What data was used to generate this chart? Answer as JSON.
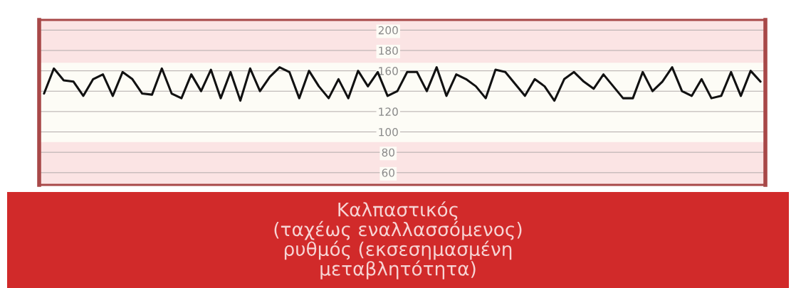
{
  "chart_data": {
    "type": "line",
    "title": "Καλπαστικός\n(ταχέως εναλλασσόμενος)\nρυθμός (εκσεσημασμένη\nμεταβλητότητα)",
    "categories": [
      null,
      null,
      null,
      null,
      null,
      null,
      null,
      null,
      null,
      null,
      null,
      null,
      null,
      null,
      null,
      null,
      null,
      null,
      null,
      null,
      null,
      null,
      null,
      null,
      null,
      null,
      null,
      null,
      null,
      null,
      null,
      null,
      null,
      null,
      null,
      null,
      null,
      null,
      null,
      null,
      null,
      null,
      null,
      null,
      null,
      null,
      null,
      null,
      null,
      null,
      null,
      null,
      null,
      null,
      null,
      null,
      null,
      null,
      null,
      null,
      null,
      null,
      null,
      null,
      null,
      null,
      null,
      null,
      null,
      null,
      null,
      null,
      null,
      null
    ],
    "series": [
      {
        "color": "#111111",
        "values": [
          137.7,
          162.3,
          150.6,
          149.4,
          135.4,
          151.8,
          156.5,
          135.4,
          158.8,
          151.8,
          137.7,
          136.6,
          162.3,
          137.7,
          133.1,
          156.5,
          140.1,
          161.1,
          133.1,
          158.8,
          130.7,
          162.3,
          140.1,
          154.1,
          163.5,
          158.8,
          133.1,
          160.0,
          144.8,
          133.1,
          151.8,
          133.1,
          160.0,
          144.8,
          158.8,
          135.4,
          140.1,
          158.8,
          158.8,
          140.1,
          163.5,
          135.4,
          156.5,
          151.8,
          144.8,
          133.1,
          161.1,
          158.8,
          147.1,
          135.4,
          151.8,
          144.8,
          130.7,
          151.8,
          158.8,
          149.4,
          142.4,
          156.5,
          144.8,
          133.1,
          133.1,
          158.8,
          140.1,
          149.4,
          163.5,
          140.1,
          135.4,
          151.8,
          133.1,
          135.4,
          158.8,
          135.4,
          160.0,
          149.4
        ]
      }
    ],
    "ylim": [
      48,
      210
    ],
    "yticks": [
      200,
      180,
      160,
      {
        "value": 140,
        "label": null
      },
      120,
      100,
      80,
      60
    ],
    "grid": "y",
    "tick_labels": "y",
    "marker": "none",
    "line_style": "solid"
  }
}
